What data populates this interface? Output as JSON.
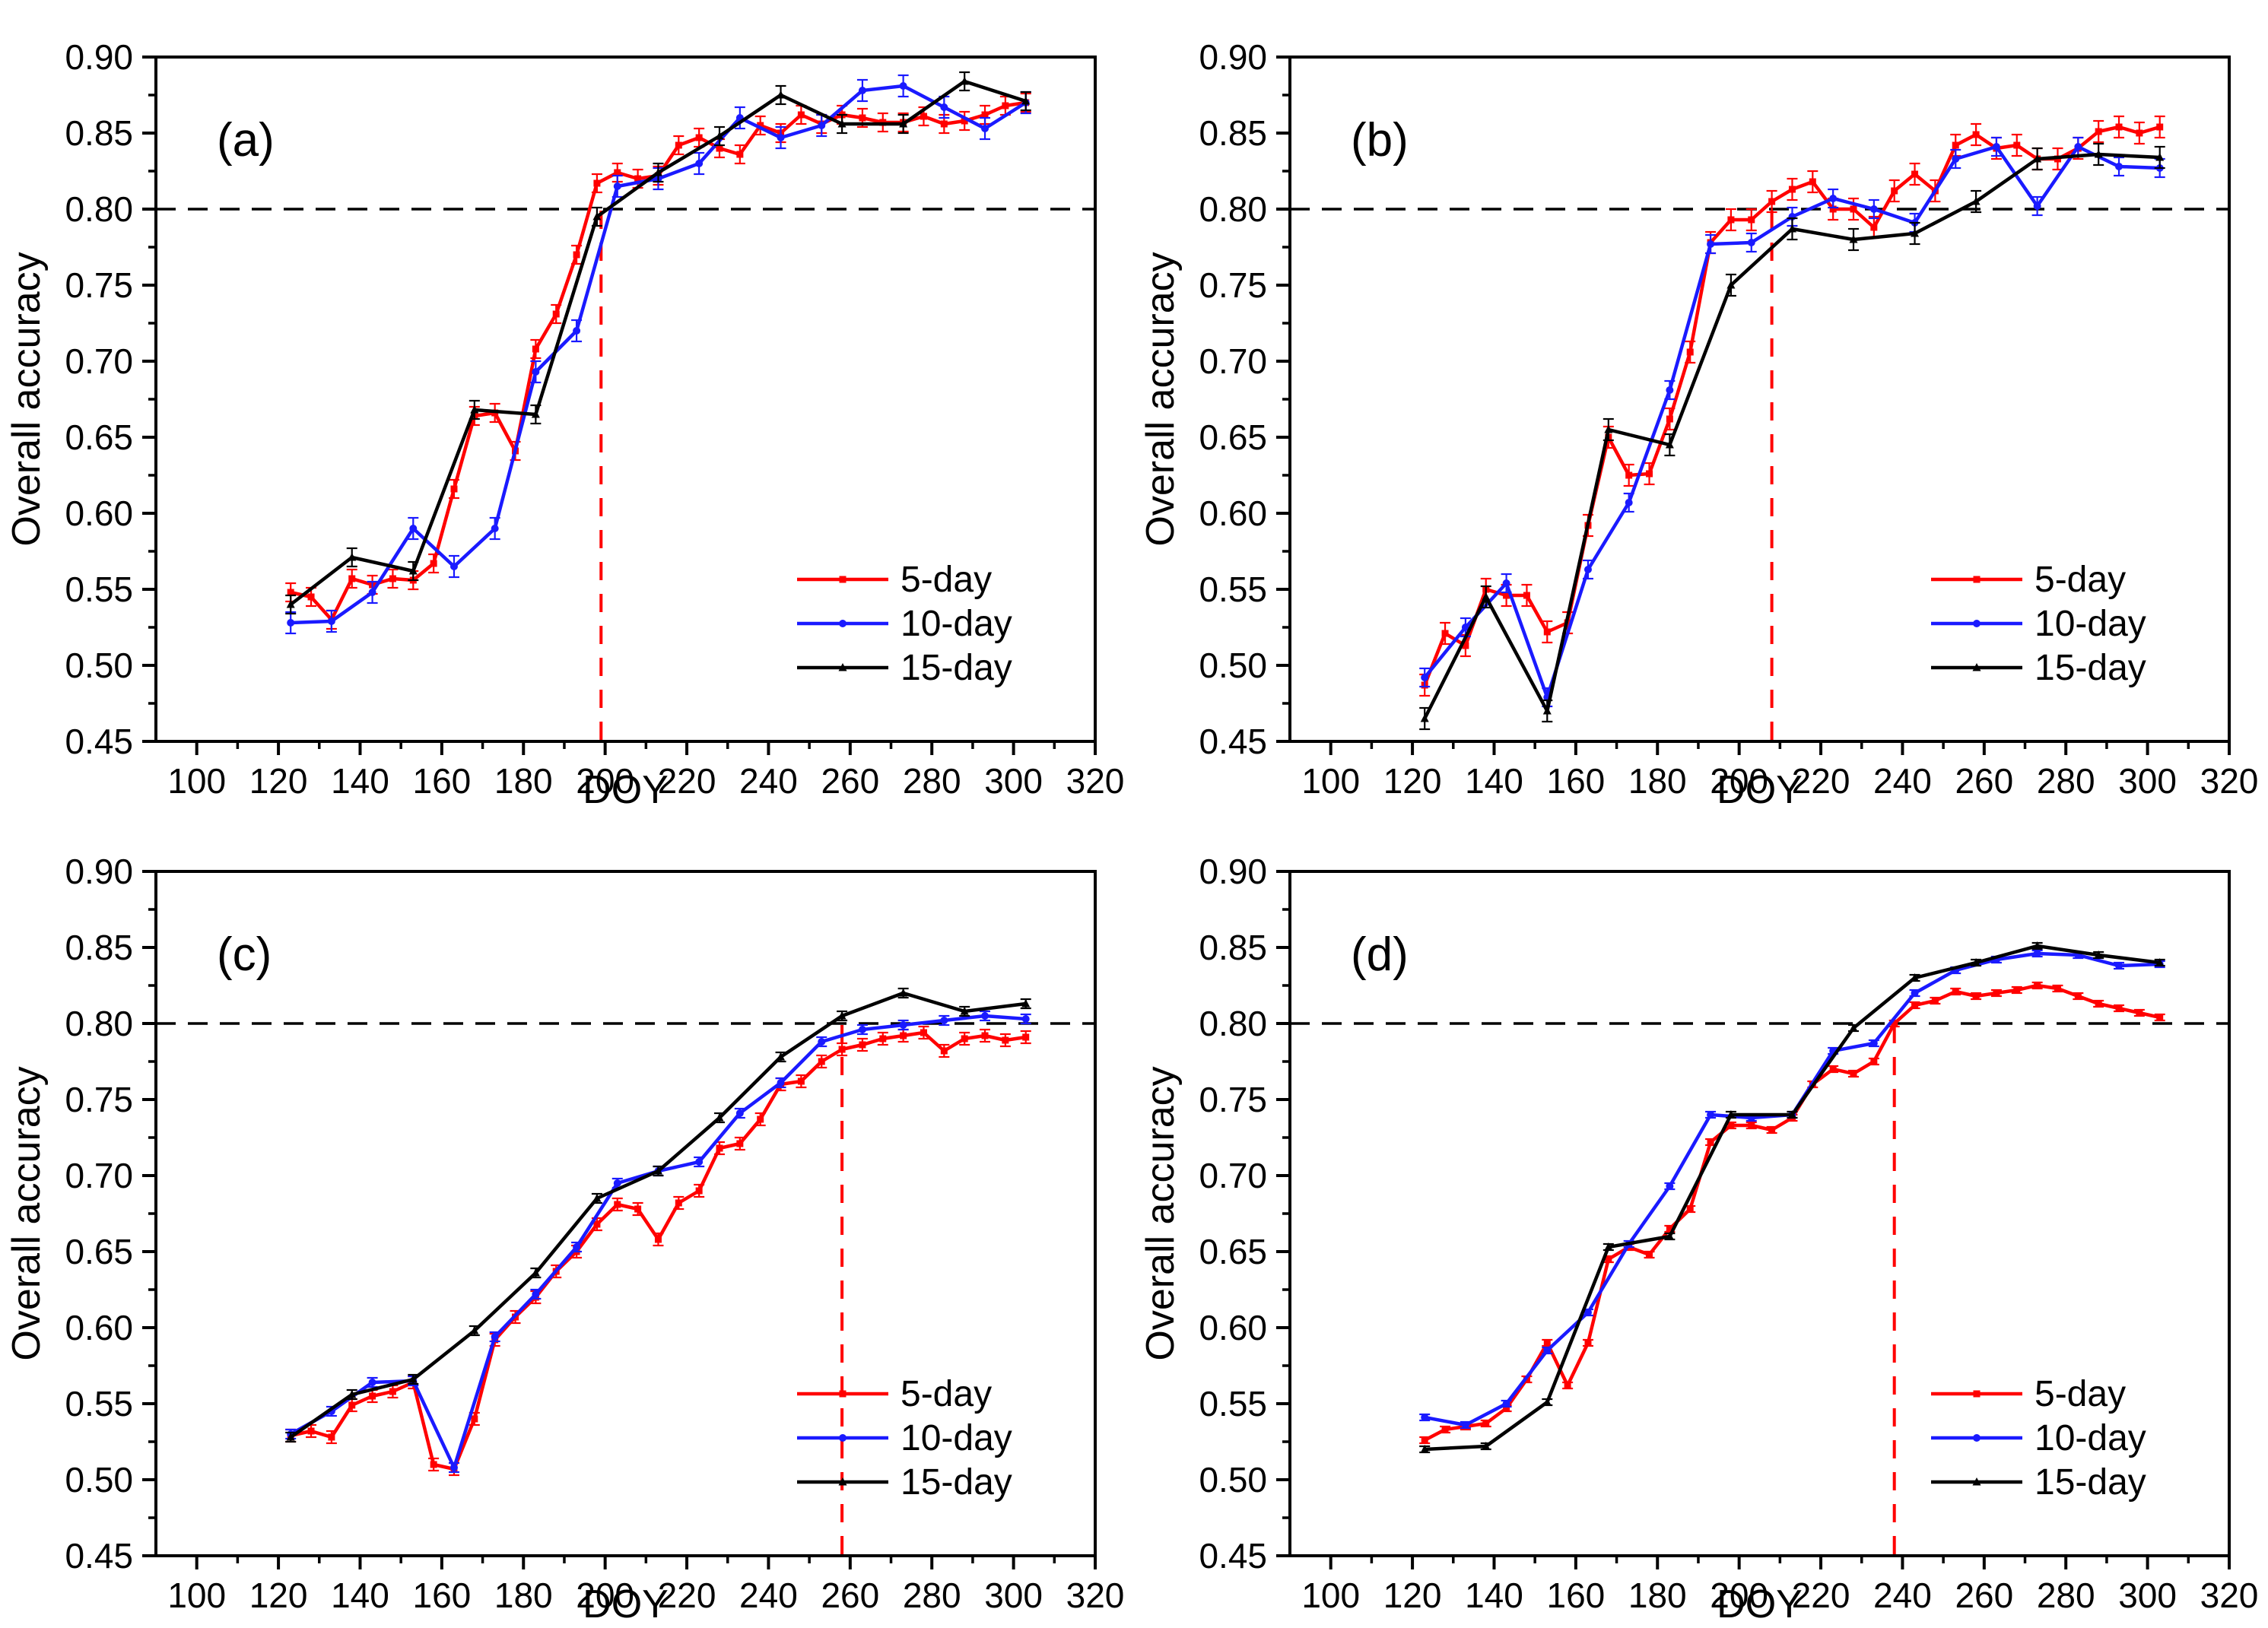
{
  "figure": {
    "background": "#ffffff",
    "axis_color": "#000000",
    "hline_color": "#000000",
    "vline_color": "#ff0000",
    "ylabel": "Overall accuracy",
    "xlabel": "DOY",
    "legend_labels": [
      "5-day",
      "10-day",
      "15-day"
    ],
    "series_colors": {
      "5-day": "#ff0000",
      "10-day": "#1a1aff",
      "15-day": "#000000"
    },
    "series_markers": {
      "5-day": "square",
      "10-day": "circle",
      "15-day": "triangle"
    }
  },
  "chart_data": [
    {
      "id": "a",
      "type": "line",
      "panel_label": "(a)",
      "xlabel": "DOY",
      "ylabel": "Overall accuracy",
      "xlim": [
        90,
        320
      ],
      "ylim": [
        0.45,
        0.9
      ],
      "xticks": [
        100,
        120,
        140,
        160,
        180,
        200,
        220,
        240,
        260,
        280,
        300,
        320
      ],
      "yticks": [
        0.45,
        0.5,
        0.55,
        0.6,
        0.65,
        0.7,
        0.75,
        0.8,
        0.85,
        0.9
      ],
      "hline": 0.8,
      "vline": 199,
      "legend_position": "lower-right",
      "grid": false,
      "series": [
        {
          "name": "5-day",
          "color": "#ff0000",
          "marker": "square",
          "err": 0.006,
          "x": [
            123,
            128,
            133,
            138,
            143,
            148,
            153,
            158,
            163,
            168,
            173,
            178,
            183,
            188,
            193,
            198,
            203,
            208,
            213,
            218,
            223,
            228,
            233,
            238,
            243,
            248,
            253,
            258,
            263,
            268,
            273,
            278,
            283,
            288,
            293,
            298,
            303
          ],
          "y": [
            0.548,
            0.545,
            0.53,
            0.557,
            0.553,
            0.557,
            0.556,
            0.567,
            0.616,
            0.664,
            0.666,
            0.641,
            0.708,
            0.731,
            0.77,
            0.817,
            0.824,
            0.82,
            0.822,
            0.842,
            0.847,
            0.84,
            0.836,
            0.855,
            0.85,
            0.862,
            0.856,
            0.862,
            0.86,
            0.857,
            0.857,
            0.861,
            0.856,
            0.858,
            0.862,
            0.868,
            0.87
          ]
        },
        {
          "name": "10-day",
          "color": "#1a1aff",
          "marker": "circle",
          "err": 0.007,
          "x": [
            123,
            133,
            143,
            153,
            163,
            173,
            183,
            193,
            203,
            213,
            223,
            233,
            243,
            253,
            263,
            273,
            283,
            293,
            303
          ],
          "y": [
            0.528,
            0.529,
            0.548,
            0.59,
            0.565,
            0.59,
            0.693,
            0.72,
            0.815,
            0.82,
            0.83,
            0.86,
            0.847,
            0.855,
            0.878,
            0.881,
            0.867,
            0.853,
            0.87
          ]
        },
        {
          "name": "15-day",
          "color": "#000000",
          "marker": "triangle",
          "err": 0.006,
          "x": [
            123,
            138,
            153,
            168,
            183,
            198,
            213,
            228,
            243,
            258,
            273,
            288,
            303
          ],
          "y": [
            0.54,
            0.571,
            0.562,
            0.668,
            0.665,
            0.795,
            0.824,
            0.848,
            0.875,
            0.856,
            0.856,
            0.884,
            0.871
          ]
        }
      ]
    },
    {
      "id": "b",
      "type": "line",
      "panel_label": "(b)",
      "xlabel": "DOY",
      "ylabel": "Overall accuracy",
      "xlim": [
        90,
        320
      ],
      "ylim": [
        0.45,
        0.9
      ],
      "xticks": [
        100,
        120,
        140,
        160,
        180,
        200,
        220,
        240,
        260,
        280,
        300,
        320
      ],
      "yticks": [
        0.45,
        0.5,
        0.55,
        0.6,
        0.65,
        0.7,
        0.75,
        0.8,
        0.85,
        0.9
      ],
      "hline": 0.8,
      "vline": 208,
      "legend_position": "lower-right",
      "grid": false,
      "series": [
        {
          "name": "5-day",
          "color": "#ff0000",
          "marker": "square",
          "err": 0.007,
          "x": [
            123,
            128,
            133,
            138,
            143,
            148,
            153,
            158,
            163,
            168,
            173,
            178,
            183,
            188,
            193,
            198,
            203,
            208,
            213,
            218,
            223,
            228,
            233,
            238,
            243,
            248,
            253,
            258,
            263,
            268,
            273,
            278,
            283,
            288,
            293,
            298,
            303
          ],
          "y": [
            0.487,
            0.521,
            0.513,
            0.55,
            0.546,
            0.546,
            0.522,
            0.528,
            0.592,
            0.65,
            0.625,
            0.626,
            0.662,
            0.706,
            0.778,
            0.793,
            0.793,
            0.805,
            0.813,
            0.818,
            0.8,
            0.8,
            0.788,
            0.812,
            0.823,
            0.812,
            0.842,
            0.849,
            0.84,
            0.842,
            0.833,
            0.833,
            0.84,
            0.851,
            0.854,
            0.85,
            0.854
          ]
        },
        {
          "name": "10-day",
          "color": "#1a1aff",
          "marker": "circle",
          "err": 0.006,
          "x": [
            123,
            133,
            143,
            153,
            163,
            173,
            183,
            193,
            203,
            213,
            223,
            233,
            243,
            253,
            263,
            273,
            283,
            293,
            303
          ],
          "y": [
            0.492,
            0.525,
            0.554,
            0.479,
            0.563,
            0.607,
            0.681,
            0.777,
            0.778,
            0.795,
            0.807,
            0.8,
            0.791,
            0.833,
            0.841,
            0.802,
            0.841,
            0.828,
            0.827
          ]
        },
        {
          "name": "15-day",
          "color": "#000000",
          "marker": "triangle",
          "err": 0.007,
          "x": [
            123,
            138,
            153,
            168,
            183,
            198,
            213,
            228,
            243,
            258,
            273,
            288,
            303
          ],
          "y": [
            0.465,
            0.545,
            0.47,
            0.655,
            0.645,
            0.75,
            0.787,
            0.78,
            0.784,
            0.805,
            0.833,
            0.836,
            0.834
          ]
        }
      ]
    },
    {
      "id": "c",
      "type": "line",
      "panel_label": "(c)",
      "xlabel": "DOY",
      "ylabel": "Overall accuracy",
      "xlim": [
        90,
        320
      ],
      "ylim": [
        0.45,
        0.9
      ],
      "xticks": [
        100,
        120,
        140,
        160,
        180,
        200,
        220,
        240,
        260,
        280,
        300,
        320
      ],
      "yticks": [
        0.45,
        0.5,
        0.55,
        0.6,
        0.65,
        0.7,
        0.75,
        0.8,
        0.85,
        0.9
      ],
      "hline": 0.8,
      "vline": 258,
      "legend_position": "lower-right",
      "grid": false,
      "series": [
        {
          "name": "5-day",
          "color": "#ff0000",
          "marker": "square",
          "err": 0.004,
          "x": [
            123,
            128,
            133,
            138,
            143,
            148,
            153,
            158,
            163,
            168,
            173,
            178,
            183,
            188,
            193,
            198,
            203,
            208,
            213,
            218,
            223,
            228,
            233,
            238,
            243,
            248,
            253,
            258,
            263,
            268,
            273,
            278,
            283,
            288,
            293,
            298,
            303
          ],
          "y": [
            0.529,
            0.532,
            0.528,
            0.549,
            0.555,
            0.558,
            0.564,
            0.51,
            0.507,
            0.54,
            0.592,
            0.607,
            0.62,
            0.637,
            0.65,
            0.668,
            0.681,
            0.678,
            0.658,
            0.682,
            0.69,
            0.718,
            0.721,
            0.737,
            0.76,
            0.762,
            0.775,
            0.783,
            0.786,
            0.79,
            0.792,
            0.794,
            0.782,
            0.79,
            0.792,
            0.789,
            0.791
          ]
        },
        {
          "name": "10-day",
          "color": "#1a1aff",
          "marker": "circle",
          "err": 0.003,
          "x": [
            123,
            133,
            143,
            153,
            163,
            173,
            183,
            193,
            203,
            213,
            223,
            233,
            243,
            253,
            263,
            273,
            283,
            293,
            303
          ],
          "y": [
            0.53,
            0.545,
            0.564,
            0.565,
            0.508,
            0.594,
            0.622,
            0.653,
            0.695,
            0.703,
            0.709,
            0.741,
            0.761,
            0.788,
            0.796,
            0.799,
            0.802,
            0.805,
            0.803
          ]
        },
        {
          "name": "15-day",
          "color": "#000000",
          "marker": "triangle",
          "err": 0.003,
          "x": [
            123,
            138,
            153,
            168,
            183,
            198,
            213,
            228,
            243,
            258,
            273,
            288,
            303
          ],
          "y": [
            0.528,
            0.556,
            0.566,
            0.598,
            0.636,
            0.685,
            0.703,
            0.738,
            0.778,
            0.805,
            0.82,
            0.808,
            0.813
          ]
        }
      ]
    },
    {
      "id": "d",
      "type": "line",
      "panel_label": "(d)",
      "xlabel": "DOY",
      "ylabel": "Overall accuracy",
      "xlim": [
        90,
        320
      ],
      "ylim": [
        0.45,
        0.9
      ],
      "xticks": [
        100,
        120,
        140,
        160,
        180,
        200,
        220,
        240,
        260,
        280,
        300,
        320
      ],
      "yticks": [
        0.45,
        0.5,
        0.55,
        0.6,
        0.65,
        0.7,
        0.75,
        0.8,
        0.85,
        0.9
      ],
      "hline": 0.8,
      "vline": 238,
      "legend_position": "lower-right",
      "grid": false,
      "series": [
        {
          "name": "5-day",
          "color": "#ff0000",
          "marker": "square",
          "err": 0.002,
          "x": [
            123,
            128,
            133,
            138,
            143,
            148,
            153,
            158,
            163,
            168,
            173,
            178,
            183,
            188,
            193,
            198,
            203,
            208,
            213,
            218,
            223,
            228,
            233,
            238,
            243,
            248,
            253,
            258,
            263,
            268,
            273,
            278,
            283,
            288,
            293,
            298,
            303
          ],
          "y": [
            0.526,
            0.533,
            0.535,
            0.537,
            0.547,
            0.566,
            0.59,
            0.562,
            0.59,
            0.645,
            0.653,
            0.648,
            0.665,
            0.678,
            0.722,
            0.733,
            0.733,
            0.73,
            0.738,
            0.76,
            0.77,
            0.767,
            0.775,
            0.8,
            0.812,
            0.815,
            0.821,
            0.818,
            0.82,
            0.822,
            0.825,
            0.823,
            0.818,
            0.813,
            0.81,
            0.807,
            0.804
          ]
        },
        {
          "name": "10-day",
          "color": "#1a1aff",
          "marker": "circle",
          "err": 0.002,
          "x": [
            123,
            133,
            143,
            153,
            163,
            173,
            183,
            193,
            203,
            213,
            223,
            233,
            243,
            253,
            263,
            273,
            283,
            293,
            303
          ],
          "y": [
            0.541,
            0.536,
            0.55,
            0.585,
            0.61,
            0.655,
            0.693,
            0.74,
            0.738,
            0.74,
            0.782,
            0.787,
            0.82,
            0.835,
            0.842,
            0.846,
            0.845,
            0.838,
            0.839
          ]
        },
        {
          "name": "15-day",
          "color": "#000000",
          "marker": "triangle",
          "err": 0.002,
          "x": [
            123,
            138,
            153,
            168,
            183,
            198,
            213,
            228,
            243,
            258,
            273,
            288,
            303
          ],
          "y": [
            0.52,
            0.522,
            0.551,
            0.653,
            0.66,
            0.74,
            0.74,
            0.797,
            0.83,
            0.84,
            0.851,
            0.845,
            0.84
          ]
        }
      ]
    }
  ]
}
